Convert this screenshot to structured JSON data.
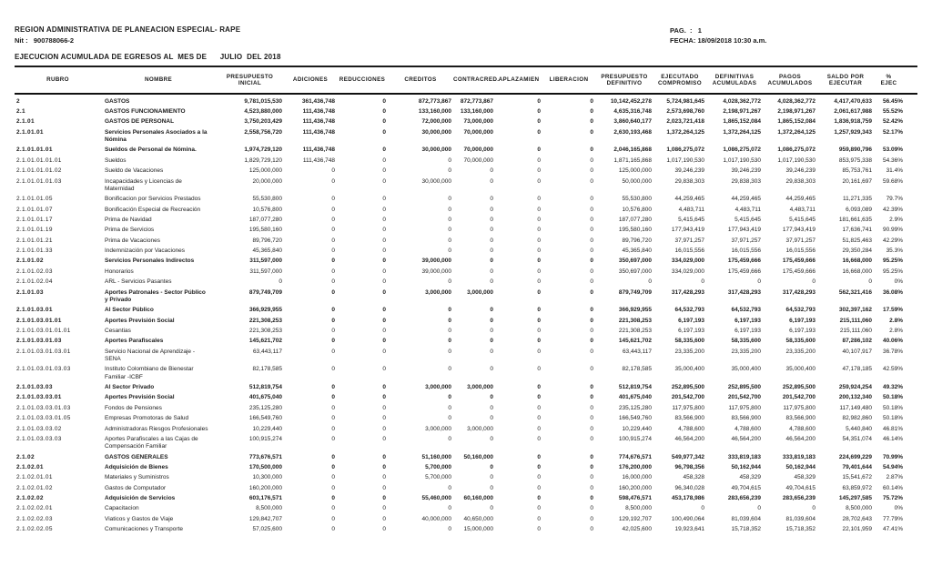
{
  "header": {
    "org": "REGION ADMINISTRATIVA DE PLANEACION ESPECIAL- RAPE",
    "nit_label": "Nit :",
    "nit": "900788066-2",
    "title": "EJECUCION ACUMULADA DE EGRESOS AL  MES DE      JULIO  DEL 2018",
    "pag_label": "PAG.  :",
    "pag": "1",
    "fecha_label": "FECHA:",
    "fecha": "18/09/2018 10:30 a.m."
  },
  "table": {
    "columns": [
      {
        "key": "rubro",
        "label": "RUBRO"
      },
      {
        "key": "nombre",
        "label": "NOMBRE"
      },
      {
        "key": "presupuesto-inicial",
        "label": "PRESUPUESTO\nINICIAL"
      },
      {
        "key": "adiciones",
        "label": "ADICIONES"
      },
      {
        "key": "reducciones",
        "label": "REDUCCIONES"
      },
      {
        "key": "creditos",
        "label": "CREDITOS"
      },
      {
        "key": "contracred",
        "label": "CONTRACRED."
      },
      {
        "key": "aplazamien",
        "label": "APLAZAMIEN"
      },
      {
        "key": "liberacion",
        "label": "LIBERACION"
      },
      {
        "key": "presupuesto-definitivo",
        "label": "PRESUPUESTO\nDEFINITIVO"
      },
      {
        "key": "ejecutado-compromiso",
        "label": "EJECUTADO\nCOMPROMISO"
      },
      {
        "key": "definitivas-acumuladas",
        "label": "DEFINITIVAS\nACUMULADAS"
      },
      {
        "key": "pagos-acumulados",
        "label": "PAGOS\nACUMULADOS"
      },
      {
        "key": "saldo-por-ejecutar",
        "label": "SALDO POR\nEJECUTAR"
      },
      {
        "key": "pct-ejec",
        "label": "%\nEJEC"
      }
    ],
    "rows": [
      {
        "rubro": "2",
        "nombre": "GASTOS",
        "bold": true,
        "values": [
          "9,781,015,530",
          "361,436,748",
          "0",
          "872,773,867",
          "872,773,867",
          "0",
          "0",
          "10,142,452,278",
          "5,724,981,645",
          "4,028,362,772",
          "4,028,362,772",
          "4,417,470,633",
          "56.45%"
        ]
      },
      {
        "rubro": "2.1",
        "nombre": "GASTOS FUNCIONAMIENTO",
        "bold": true,
        "values": [
          "4,523,880,000",
          "111,436,748",
          "0",
          "133,160,000",
          "133,160,000",
          "0",
          "0",
          "4,635,316,748",
          "2,573,698,760",
          "2,198,971,267",
          "2,198,971,267",
          "2,061,617,988",
          "55.52%"
        ]
      },
      {
        "rubro": "2.1.01",
        "nombre": "GASTOS DE PERSONAL",
        "bold": true,
        "values": [
          "3,750,203,429",
          "111,436,748",
          "0",
          "72,000,000",
          "73,000,000",
          "0",
          "0",
          "3,860,640,177",
          "2,023,721,418",
          "1,865,152,084",
          "1,865,152,084",
          "1,836,918,759",
          "52.42%"
        ]
      },
      {
        "rubro": "2.1.01.01",
        "nombre": "Servicios Personales Asociados a la Nómina",
        "bold": true,
        "values": [
          "2,558,756,720",
          "111,436,748",
          "0",
          "30,000,000",
          "70,000,000",
          "0",
          "0",
          "2,630,193,468",
          "1,372,264,125",
          "1,372,264,125",
          "1,372,264,125",
          "1,257,929,343",
          "52.17%"
        ]
      },
      {
        "rubro": "2.1.01.01.01",
        "nombre": "Sueldos de Personal de Nómina.",
        "bold": true,
        "values": [
          "1,974,729,120",
          "111,436,748",
          "0",
          "30,000,000",
          "70,000,000",
          "0",
          "0",
          "2,046,165,868",
          "1,086,275,072",
          "1,086,275,072",
          "1,086,275,072",
          "959,890,796",
          "53.09%"
        ]
      },
      {
        "rubro": "2.1.01.01.01.01",
        "nombre": "Sueldos",
        "bold": false,
        "values": [
          "1,829,729,120",
          "111,436,748",
          "0",
          "0",
          "70,000,000",
          "0",
          "0",
          "1,871,165,868",
          "1,017,190,530",
          "1,017,190,530",
          "1,017,190,530",
          "853,975,338",
          "54.36%"
        ]
      },
      {
        "rubro": "2.1.01.01.01.02",
        "nombre": "Sueldo de Vacaciones",
        "bold": false,
        "values": [
          "125,000,000",
          "0",
          "0",
          "0",
          "0",
          "0",
          "0",
          "125,000,000",
          "39,246,239",
          "39,246,239",
          "39,246,239",
          "85,753,761",
          "31.4%"
        ]
      },
      {
        "rubro": "2.1.01.01.01.03",
        "nombre": "Incapacidades y Licencias de Maternidad",
        "bold": false,
        "values": [
          "20,000,000",
          "0",
          "0",
          "30,000,000",
          "0",
          "0",
          "0",
          "50,000,000",
          "29,838,303",
          "29,838,303",
          "29,838,303",
          "20,161,697",
          "59.68%"
        ]
      },
      {
        "rubro": "2.1.01.01.05",
        "nombre": "Bonificacion por Servicios Prestados",
        "bold": false,
        "values": [
          "55,530,800",
          "0",
          "0",
          "0",
          "0",
          "0",
          "0",
          "55,530,800",
          "44,259,465",
          "44,259,465",
          "44,259,465",
          "11,271,335",
          "79.7%"
        ]
      },
      {
        "rubro": "2.1.01.01.07",
        "nombre": "Bonificación Especial de Recreación",
        "bold": false,
        "values": [
          "10,576,800",
          "0",
          "0",
          "0",
          "0",
          "0",
          "0",
          "10,576,800",
          "4,483,711",
          "4,483,711",
          "4,483,711",
          "6,093,089",
          "42.39%"
        ]
      },
      {
        "rubro": "2.1.01.01.17",
        "nombre": "Prima de Navidad",
        "bold": false,
        "values": [
          "187,077,280",
          "0",
          "0",
          "0",
          "0",
          "0",
          "0",
          "187,077,280",
          "5,415,645",
          "5,415,645",
          "5,415,645",
          "181,661,635",
          "2.9%"
        ]
      },
      {
        "rubro": "2.1.01.01.19",
        "nombre": "Prima de Servicios",
        "bold": false,
        "values": [
          "195,580,160",
          "0",
          "0",
          "0",
          "0",
          "0",
          "0",
          "195,580,160",
          "177,943,419",
          "177,943,419",
          "177,943,419",
          "17,636,741",
          "90.99%"
        ]
      },
      {
        "rubro": "2.1.01.01.21",
        "nombre": "Prima de Vacaciones",
        "bold": false,
        "values": [
          "89,796,720",
          "0",
          "0",
          "0",
          "0",
          "0",
          "0",
          "89,796,720",
          "37,971,257",
          "37,971,257",
          "37,971,257",
          "51,825,463",
          "42.29%"
        ]
      },
      {
        "rubro": "2.1.01.01.33",
        "nombre": "Indemnización por Vacaciones",
        "bold": false,
        "values": [
          "45,365,840",
          "0",
          "0",
          "0",
          "0",
          "0",
          "0",
          "45,365,840",
          "16,015,556",
          "16,015,556",
          "16,015,556",
          "29,350,284",
          "35.3%"
        ]
      },
      {
        "rubro": "2.1.01.02",
        "nombre": "Servicios Personales Indirectos",
        "bold": true,
        "values": [
          "311,597,000",
          "0",
          "0",
          "39,000,000",
          "0",
          "0",
          "0",
          "350,697,000",
          "334,029,000",
          "175,459,666",
          "175,459,666",
          "16,668,000",
          "95.25%"
        ]
      },
      {
        "rubro": "2.1.01.02.03",
        "nombre": "Honorarios",
        "bold": false,
        "values": [
          "311,597,000",
          "0",
          "0",
          "39,000,000",
          "0",
          "0",
          "0",
          "350,697,000",
          "334,029,000",
          "175,459,666",
          "175,459,666",
          "16,668,000",
          "95.25%"
        ]
      },
      {
        "rubro": "2.1.01.02.04",
        "nombre": "ARL - Servicios Pasantes",
        "bold": false,
        "values": [
          "0",
          "0",
          "0",
          "0",
          "0",
          "0",
          "0",
          "0",
          "0",
          "0",
          "0",
          "0",
          "0%"
        ]
      },
      {
        "rubro": "2.1.01.03",
        "nombre": "Aportes Patronales - Sector Público y Privado",
        "bold": true,
        "values": [
          "879,749,709",
          "0",
          "0",
          "3,000,000",
          "3,000,000",
          "0",
          "0",
          "879,749,709",
          "317,428,293",
          "317,428,293",
          "317,428,293",
          "562,321,416",
          "36.08%"
        ]
      },
      {
        "rubro": "2.1.01.03.01",
        "nombre": "Al Sector Público",
        "bold": true,
        "values": [
          "366,929,955",
          "0",
          "0",
          "0",
          "0",
          "0",
          "0",
          "366,929,955",
          "64,532,793",
          "64,532,793",
          "64,532,793",
          "302,397,162",
          "17.59%"
        ]
      },
      {
        "rubro": "2.1.01.03.01.01",
        "nombre": "Aportes Previsión Social",
        "bold": true,
        "values": [
          "221,308,253",
          "0",
          "0",
          "0",
          "0",
          "0",
          "0",
          "221,308,253",
          "6,197,193",
          "6,197,193",
          "6,197,193",
          "215,111,060",
          "2.8%"
        ]
      },
      {
        "rubro": "2.1.01.03.01.01.01",
        "nombre": "Cesantias",
        "bold": false,
        "values": [
          "221,308,253",
          "0",
          "0",
          "0",
          "0",
          "0",
          "0",
          "221,308,253",
          "6,197,193",
          "6,197,193",
          "6,197,193",
          "215,111,060",
          "2.8%"
        ]
      },
      {
        "rubro": "2.1.01.03.01.03",
        "nombre": "Aportes Parafiscales",
        "bold": true,
        "values": [
          "145,621,702",
          "0",
          "0",
          "0",
          "0",
          "0",
          "0",
          "145,621,702",
          "58,335,600",
          "58,335,600",
          "58,335,600",
          "87,286,102",
          "40.06%"
        ]
      },
      {
        "rubro": "2.1.01.03.01.03.01",
        "nombre": "Servicio Nacional de Aprendizaje -SENA",
        "bold": false,
        "values": [
          "63,443,117",
          "0",
          "0",
          "0",
          "0",
          "0",
          "0",
          "63,443,117",
          "23,335,200",
          "23,335,200",
          "23,335,200",
          "40,107,917",
          "36.78%"
        ]
      },
      {
        "rubro": "2.1.01.03.01.03.03",
        "nombre": "Instituto Colombiano de Bienestar Familiar -ICBF",
        "bold": false,
        "values": [
          "82,178,585",
          "0",
          "0",
          "0",
          "0",
          "0",
          "0",
          "82,178,585",
          "35,000,400",
          "35,000,400",
          "35,000,400",
          "47,178,185",
          "42.59%"
        ]
      },
      {
        "rubro": "2.1.01.03.03",
        "nombre": "Al Sector Privado",
        "bold": true,
        "values": [
          "512,819,754",
          "0",
          "0",
          "3,000,000",
          "3,000,000",
          "0",
          "0",
          "512,819,754",
          "252,895,500",
          "252,895,500",
          "252,895,500",
          "259,924,254",
          "49.32%"
        ]
      },
      {
        "rubro": "2.1.01.03.03.01",
        "nombre": "Aportes Previsión Social",
        "bold": true,
        "values": [
          "401,675,040",
          "0",
          "0",
          "0",
          "0",
          "0",
          "0",
          "401,675,040",
          "201,542,700",
          "201,542,700",
          "201,542,700",
          "200,132,340",
          "50.18%"
        ]
      },
      {
        "rubro": "2.1.01.03.03.01.03",
        "nombre": "Fondos de Pensiones",
        "bold": false,
        "values": [
          "235,125,280",
          "0",
          "0",
          "0",
          "0",
          "0",
          "0",
          "235,125,280",
          "117,975,800",
          "117,975,800",
          "117,975,800",
          "117,149,480",
          "50.18%"
        ]
      },
      {
        "rubro": "2.1.01.03.03.01.05",
        "nombre": "Empresas Promotoras de Salud",
        "bold": false,
        "values": [
          "166,549,760",
          "0",
          "0",
          "0",
          "0",
          "0",
          "0",
          "166,549,760",
          "83,566,900",
          "83,566,900",
          "83,566,900",
          "82,982,860",
          "50.18%"
        ]
      },
      {
        "rubro": "2.1.01.03.03.02",
        "nombre": "Administradoras Riesgos Profesionales",
        "bold": false,
        "values": [
          "10,229,440",
          "0",
          "0",
          "3,000,000",
          "3,000,000",
          "0",
          "0",
          "10,229,440",
          "4,788,600",
          "4,788,600",
          "4,788,600",
          "5,440,840",
          "46.81%"
        ]
      },
      {
        "rubro": "2.1.01.03.03.03",
        "nombre": "Aportes Parafiscales a las Cajas de Compensación Familiar",
        "bold": false,
        "values": [
          "100,915,274",
          "0",
          "0",
          "0",
          "0",
          "0",
          "0",
          "100,915,274",
          "46,564,200",
          "46,564,200",
          "46,564,200",
          "54,351,074",
          "46.14%"
        ]
      },
      {
        "rubro": "2.1.02",
        "nombre": "GASTOS GENERALES",
        "bold": true,
        "values": [
          "773,676,571",
          "0",
          "0",
          "51,160,000",
          "50,160,000",
          "0",
          "0",
          "774,676,571",
          "549,977,342",
          "333,819,183",
          "333,819,183",
          "224,699,229",
          "70.99%"
        ]
      },
      {
        "rubro": "2.1.02.01",
        "nombre": "Adquisición de Bienes",
        "bold": true,
        "values": [
          "170,500,000",
          "0",
          "0",
          "5,700,000",
          "0",
          "0",
          "0",
          "176,200,000",
          "96,798,356",
          "50,162,944",
          "50,162,944",
          "79,401,644",
          "54.94%"
        ]
      },
      {
        "rubro": "2.1.02.01.01",
        "nombre": "Materiales y Suministros",
        "bold": false,
        "values": [
          "10,300,000",
          "0",
          "0",
          "5,700,000",
          "0",
          "0",
          "0",
          "16,000,000",
          "458,328",
          "458,329",
          "458,329",
          "15,541,672",
          "2.87%"
        ]
      },
      {
        "rubro": "2.1.02.01.02",
        "nombre": "Gastos de Computador",
        "bold": false,
        "values": [
          "160,200,000",
          "0",
          "0",
          "0",
          "0",
          "0",
          "0",
          "160,200,000",
          "96,340,028",
          "49,704,615",
          "49,704,615",
          "63,859,972",
          "60.14%"
        ]
      },
      {
        "rubro": "2.1.02.02",
        "nombre": "Adquisición de Servicios",
        "bold": true,
        "values": [
          "603,176,571",
          "0",
          "0",
          "55,460,000",
          "60,160,000",
          "0",
          "0",
          "598,476,571",
          "453,178,986",
          "283,656,239",
          "283,656,239",
          "145,297,585",
          "75.72%"
        ]
      },
      {
        "rubro": "2.1.02.02.01",
        "nombre": "Capacitacion",
        "bold": false,
        "values": [
          "8,500,000",
          "0",
          "0",
          "0",
          "0",
          "0",
          "0",
          "8,500,000",
          "0",
          "0",
          "0",
          "8,500,000",
          "0%"
        ]
      },
      {
        "rubro": "2.1.02.02.03",
        "nombre": "Viaticos y Gastos de Viaje",
        "bold": false,
        "values": [
          "129,842,707",
          "0",
          "0",
          "40,000,000",
          "40,650,000",
          "0",
          "0",
          "129,192,707",
          "100,490,064",
          "81,039,604",
          "81,039,604",
          "28,702,643",
          "77.79%"
        ]
      },
      {
        "rubro": "2.1.02.02.05",
        "nombre": "Comunicaciones y Transporte",
        "bold": false,
        "values": [
          "57,025,600",
          "0",
          "0",
          "0",
          "15,000,000",
          "0",
          "0",
          "42,025,600",
          "19,923,641",
          "15,718,352",
          "15,718,352",
          "22,101,959",
          "47.41%"
        ]
      }
    ]
  }
}
